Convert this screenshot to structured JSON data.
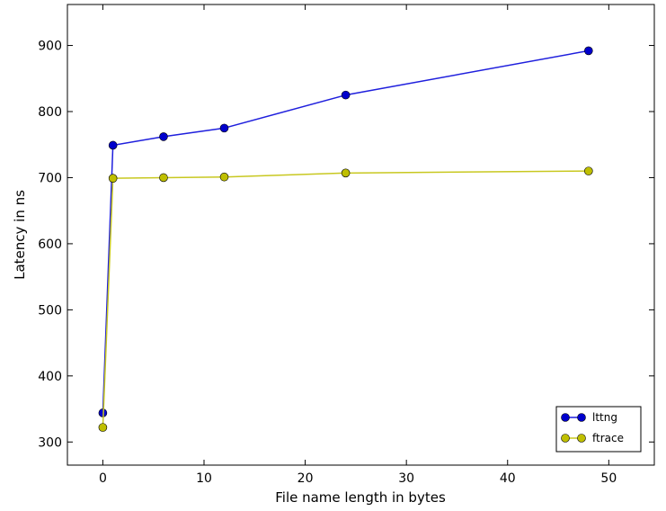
{
  "chart_data": {
    "type": "line",
    "xlabel": "File name length in bytes",
    "ylabel": "Latency in ns",
    "xlim": [
      -3.5,
      54.5
    ],
    "ylim": [
      265,
      962
    ],
    "xticks": [
      0,
      10,
      20,
      30,
      40,
      50
    ],
    "yticks": [
      300,
      400,
      500,
      600,
      700,
      800,
      900
    ],
    "legend_position": "lower-right",
    "grid": false,
    "series": [
      {
        "name": "lttng",
        "color": "#0000cc",
        "line_color": "#1f1fdd",
        "x": [
          0,
          1,
          6,
          12,
          24,
          48
        ],
        "y": [
          344,
          749,
          762,
          775,
          825,
          892
        ]
      },
      {
        "name": "ftrace",
        "color": "#bfbf00",
        "line_color": "#c8c820",
        "x": [
          0,
          1,
          6,
          12,
          24,
          48
        ],
        "y": [
          322,
          699,
          700,
          701,
          707,
          710
        ]
      }
    ]
  }
}
